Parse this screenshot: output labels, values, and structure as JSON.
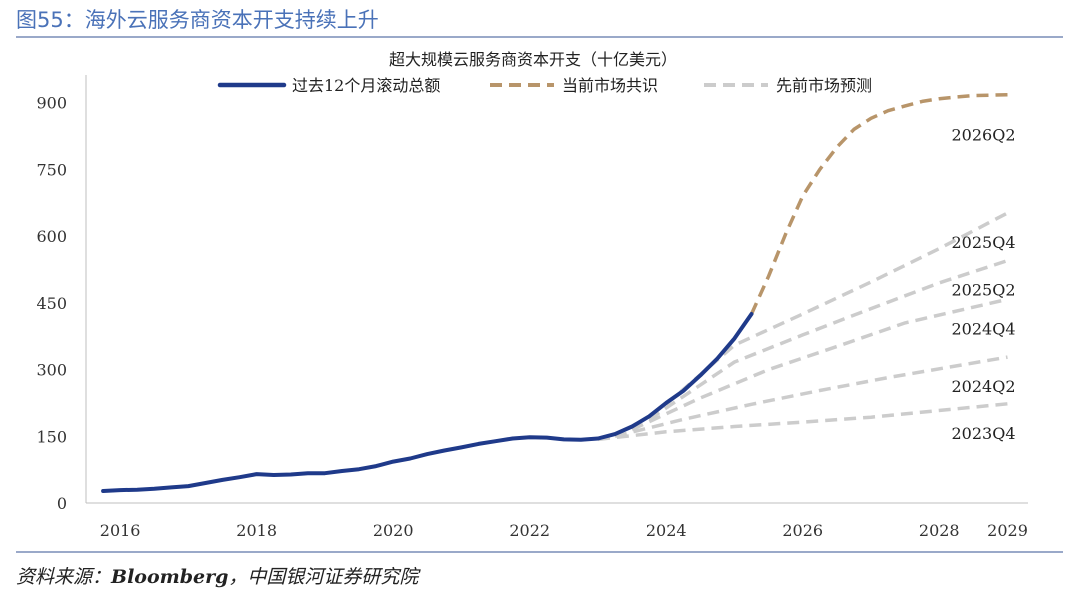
{
  "figure": {
    "title": "图55：海外云服务商资本开支持续上升",
    "source_prefix": "资料来源：",
    "source_brand": "Bloomberg",
    "source_suffix": "，中国银河证券研究院"
  },
  "chart_data": {
    "type": "line",
    "title": "超大规模云服务商资本开支（十亿美元）",
    "xlabel": "",
    "ylabel": "",
    "xlim": [
      2015.5,
      2029.3
    ],
    "ylim": [
      0,
      950
    ],
    "x_ticks": [
      "2016",
      "2018",
      "2020",
      "2022",
      "2024",
      "2026",
      "2028",
      "2029"
    ],
    "y_ticks": [
      0,
      150,
      300,
      450,
      600,
      750,
      900
    ],
    "grid": false,
    "legend_position": "top",
    "colors": {
      "actual": "#1f3a8a",
      "consensus": "#b8956a",
      "forecast": "#cccccc",
      "rule": "#9aa9c9",
      "title": "#4a72b8"
    },
    "series": [
      {
        "name": "过去12个月滚动总额",
        "style": "solid",
        "points": [
          [
            2015.75,
            27
          ],
          [
            2016.0,
            29
          ],
          [
            2016.25,
            30
          ],
          [
            2016.5,
            32
          ],
          [
            2016.75,
            35
          ],
          [
            2017.0,
            38
          ],
          [
            2017.25,
            45
          ],
          [
            2017.5,
            52
          ],
          [
            2017.75,
            58
          ],
          [
            2018.0,
            65
          ],
          [
            2018.25,
            63
          ],
          [
            2018.5,
            64
          ],
          [
            2018.75,
            67
          ],
          [
            2019.0,
            67
          ],
          [
            2019.25,
            72
          ],
          [
            2019.5,
            76
          ],
          [
            2019.75,
            83
          ],
          [
            2020.0,
            93
          ],
          [
            2020.25,
            100
          ],
          [
            2020.5,
            110
          ],
          [
            2020.75,
            118
          ],
          [
            2021.0,
            125
          ],
          [
            2021.25,
            133
          ],
          [
            2021.5,
            139
          ],
          [
            2021.75,
            145
          ],
          [
            2022.0,
            148
          ],
          [
            2022.25,
            147
          ],
          [
            2022.5,
            143
          ],
          [
            2022.75,
            142
          ],
          [
            2023.0,
            145
          ],
          [
            2023.25,
            155
          ],
          [
            2023.5,
            172
          ],
          [
            2023.75,
            195
          ],
          [
            2024.0,
            225
          ],
          [
            2024.25,
            252
          ],
          [
            2024.5,
            287
          ],
          [
            2024.75,
            325
          ],
          [
            2025.0,
            370
          ],
          [
            2025.25,
            425
          ]
        ]
      },
      {
        "name": "当前市场共识",
        "style": "dashed",
        "label": "2026Q2",
        "points": [
          [
            2025.25,
            425
          ],
          [
            2025.5,
            510
          ],
          [
            2025.75,
            605
          ],
          [
            2026.0,
            690
          ],
          [
            2026.25,
            750
          ],
          [
            2026.5,
            800
          ],
          [
            2026.75,
            840
          ],
          [
            2027.0,
            865
          ],
          [
            2027.25,
            882
          ],
          [
            2027.5,
            893
          ],
          [
            2027.75,
            903
          ],
          [
            2028.0,
            909
          ],
          [
            2028.25,
            913
          ],
          [
            2028.5,
            916
          ],
          [
            2028.75,
            917
          ],
          [
            2029.0,
            918
          ]
        ]
      },
      {
        "name": "先前市场预测",
        "style": "dashed",
        "label": "2025Q4",
        "points": [
          [
            2024.0,
            222
          ],
          [
            2025.0,
            355
          ],
          [
            2026.0,
            425
          ],
          [
            2027.0,
            497
          ],
          [
            2028.0,
            572
          ],
          [
            2029.0,
            652
          ]
        ]
      },
      {
        "name": "先前市场预测",
        "style": "dashed",
        "label": "2025Q2",
        "points": [
          [
            2023.75,
            188
          ],
          [
            2025.0,
            317
          ],
          [
            2026.0,
            378
          ],
          [
            2027.0,
            437
          ],
          [
            2028.0,
            495
          ],
          [
            2029.0,
            545
          ]
        ]
      },
      {
        "name": "先前市场预测",
        "style": "dashed",
        "label": "2024Q4",
        "points": [
          [
            2023.5,
            165
          ],
          [
            2024.5,
            236
          ],
          [
            2025.5,
            300
          ],
          [
            2026.5,
            352
          ],
          [
            2027.5,
            405
          ],
          [
            2029.0,
            458
          ]
        ]
      },
      {
        "name": "先前市场预测",
        "style": "dashed",
        "label": "2024Q2",
        "points": [
          [
            2023.25,
            150
          ],
          [
            2024.25,
            188
          ],
          [
            2025.25,
            222
          ],
          [
            2026.25,
            253
          ],
          [
            2027.25,
            282
          ],
          [
            2029.0,
            328
          ]
        ]
      },
      {
        "name": "先前市场预测",
        "style": "dashed",
        "label": "2023Q4",
        "points": [
          [
            2023.0,
            143
          ],
          [
            2024.0,
            160
          ],
          [
            2025.0,
            172
          ],
          [
            2026.0,
            182
          ],
          [
            2027.0,
            193
          ],
          [
            2029.0,
            223
          ]
        ]
      }
    ],
    "legend": [
      {
        "name": "过去12个月滚动总额",
        "style": "solid",
        "color": "#1f3a8a"
      },
      {
        "name": "当前市场共识",
        "style": "dashed",
        "color": "#b8956a"
      },
      {
        "name": "先前市场预测",
        "style": "dashed",
        "color": "#cccccc"
      }
    ]
  }
}
